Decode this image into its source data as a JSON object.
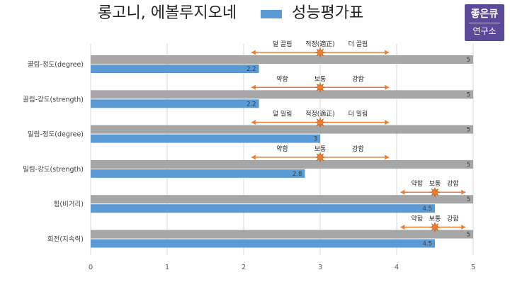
{
  "legend": {
    "item1_label": "롱고니, 에볼루지오네",
    "item2_label": "성능평가표",
    "item2_color": "#5b9bd5"
  },
  "logo": {
    "line1": "좋은큐",
    "line2": "연구소",
    "bg": "#5b4a9a"
  },
  "colors": {
    "reference_bar": "#a6a6a6",
    "score_bar": "#5b9bd5",
    "arrow": "#ed7d31",
    "star": "#ed7d31",
    "grid": "#d9d9d9"
  },
  "chart_data": {
    "type": "bar",
    "orientation": "horizontal",
    "xlim": [
      0,
      5
    ],
    "x_ticks": [
      "0",
      "1",
      "2",
      "3",
      "4",
      "5"
    ],
    "grid": true,
    "categories": [
      "끌림-정도(degree)",
      "끌림-강도(strength)",
      "밀림-정도(degree)",
      "밀림-강도(strength)",
      "힘(비거리)",
      "회전(지속력)"
    ],
    "series": [
      {
        "values": [
          5,
          5,
          5,
          5,
          5,
          5
        ],
        "labels": [
          "5",
          "5",
          "5",
          "5",
          "5",
          "5"
        ]
      },
      {
        "name": "성능평가표",
        "values": [
          2.2,
          2.2,
          3,
          2.8,
          4.5,
          4.5
        ],
        "labels": [
          "2.2",
          "2.2",
          "3",
          "2.8",
          "4.5",
          "4.5"
        ]
      }
    ],
    "annotations": [
      {
        "center": 3,
        "arrow_from": 2.1,
        "arrow_to": 3.9,
        "left": "덜 끌림",
        "mid": "적정(適正)",
        "right": "더 끌림"
      },
      {
        "center": 3,
        "arrow_from": 2.1,
        "arrow_to": 3.9,
        "left": "약함",
        "mid": "보통",
        "right": "강함"
      },
      {
        "center": 3,
        "arrow_from": 2.1,
        "arrow_to": 3.9,
        "left": "덜 밀림",
        "mid": "적정(適正)",
        "right": "더 밀림"
      },
      {
        "center": 3,
        "arrow_from": 2.1,
        "arrow_to": 3.9,
        "left": "약함",
        "mid": "보통",
        "right": "강함"
      },
      {
        "center": 4.5,
        "arrow_from": 4.05,
        "arrow_to": 4.9,
        "left": "약함",
        "mid": "보통",
        "right": "강함"
      },
      {
        "center": 4.5,
        "arrow_from": 4.05,
        "arrow_to": 4.9,
        "left": "약함",
        "mid": "보통",
        "right": "강함"
      }
    ]
  }
}
